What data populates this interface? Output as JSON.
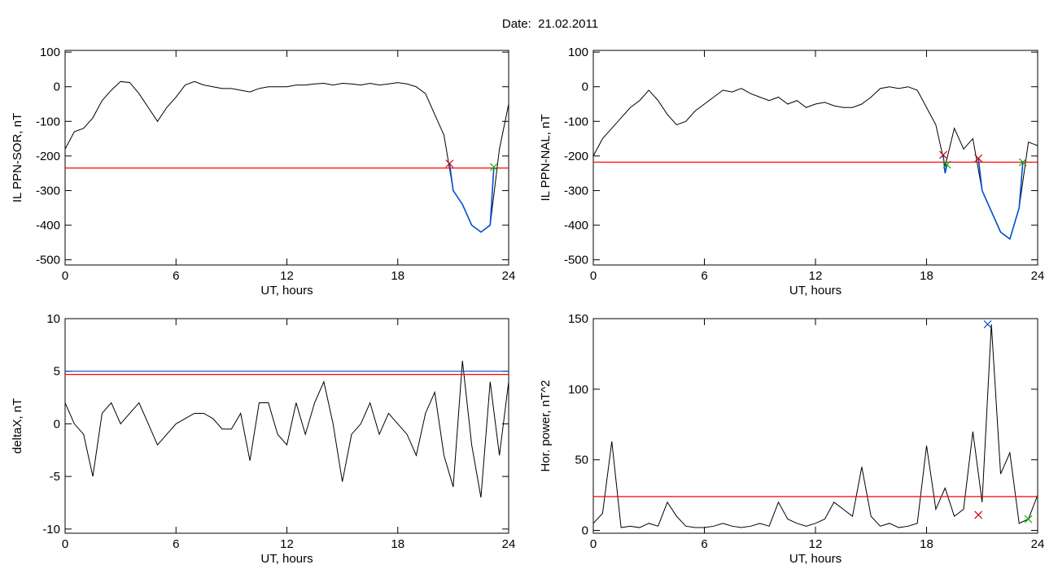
{
  "title": "Date:  21.02.2011",
  "chart_data": [
    {
      "type": "line",
      "ylabel": "IL PPN-SOR, nT",
      "xlabel": "UT, hours",
      "x": [
        0,
        0.5,
        1,
        1.5,
        2,
        2.5,
        3,
        3.5,
        4,
        4.5,
        5,
        5.5,
        6,
        6.5,
        7,
        7.5,
        8,
        8.5,
        9,
        9.5,
        10,
        10.5,
        11,
        11.5,
        12,
        12.5,
        13,
        13.5,
        14,
        14.5,
        15,
        15.5,
        16,
        16.5,
        17,
        17.5,
        18,
        18.5,
        19,
        19.5,
        20,
        20.5,
        21,
        21.5,
        22,
        22.5,
        23,
        23.5,
        24
      ],
      "series": [
        {
          "color": "#000000",
          "values": [
            -180,
            -130,
            -120,
            -90,
            -40,
            -10,
            15,
            12,
            -20,
            -60,
            -100,
            -60,
            -30,
            5,
            15,
            5,
            0,
            -5,
            -5,
            -10,
            -15,
            -5,
            0,
            0,
            0,
            5,
            5,
            8,
            10,
            5,
            10,
            8,
            5,
            10,
            5,
            8,
            12,
            8,
            0,
            -20,
            -80,
            -140,
            -300,
            -340,
            -400,
            -420,
            -400,
            -180,
            -50
          ]
        },
        {
          "color": "#0050d0",
          "x": [
            20.8,
            21,
            21.5,
            22,
            22.5,
            23,
            23.2
          ],
          "values": [
            -222,
            -300,
            -340,
            -400,
            -420,
            -400,
            -232
          ]
        }
      ],
      "hlines": [
        {
          "value": -235,
          "color": "#ff0000"
        }
      ],
      "markers": [
        {
          "x": 20.8,
          "y": -222,
          "color": "#d00000"
        },
        {
          "x": 23.2,
          "y": -232,
          "color": "#00b000"
        }
      ],
      "xlim": [
        0,
        24
      ],
      "xticks": [
        0,
        6,
        12,
        18,
        24
      ],
      "ylim": [
        -515,
        105
      ],
      "yticks": [
        100,
        0,
        -100,
        -200,
        -300,
        -400,
        -500
      ]
    },
    {
      "type": "line",
      "ylabel": "IL PPN-NAL, nT",
      "xlabel": "UT, hours",
      "x": [
        0,
        0.5,
        1,
        1.5,
        2,
        2.5,
        3,
        3.5,
        4,
        4.5,
        5,
        5.5,
        6,
        6.5,
        7,
        7.5,
        8,
        8.5,
        9,
        9.5,
        10,
        10.5,
        11,
        11.5,
        12,
        12.5,
        13,
        13.5,
        14,
        14.5,
        15,
        15.5,
        16,
        16.5,
        17,
        17.5,
        18,
        18.5,
        19,
        19.5,
        20,
        20.5,
        21,
        21.5,
        22,
        22.5,
        23,
        23.5,
        24
      ],
      "series": [
        {
          "color": "#000000",
          "values": [
            -200,
            -150,
            -120,
            -90,
            -60,
            -40,
            -10,
            -40,
            -80,
            -110,
            -100,
            -70,
            -50,
            -30,
            -10,
            -15,
            -5,
            -20,
            -30,
            -40,
            -30,
            -50,
            -40,
            -60,
            -50,
            -45,
            -55,
            -60,
            -60,
            -50,
            -30,
            -5,
            0,
            -5,
            0,
            -10,
            -60,
            -110,
            -230,
            -120,
            -180,
            -150,
            -300,
            -360,
            -420,
            -440,
            -350,
            -160,
            -170
          ]
        },
        {
          "color": "#0050d0",
          "x": [
            18.9,
            19,
            19.1,
            20,
            20.8,
            21,
            21.5,
            22,
            22.5,
            23,
            23.2
          ],
          "values": [
            -197,
            -250,
            -225,
            null,
            -207,
            -300,
            -360,
            -420,
            -440,
            -350,
            -218
          ]
        }
      ],
      "hlines": [
        {
          "value": -218,
          "color": "#ff0000"
        }
      ],
      "markers": [
        {
          "x": 18.9,
          "y": -197,
          "color": "#d00000"
        },
        {
          "x": 20.8,
          "y": -207,
          "color": "#d00000"
        },
        {
          "x": 19.1,
          "y": -225,
          "color": "#00b000"
        },
        {
          "x": 23.2,
          "y": -218,
          "color": "#00b000"
        }
      ],
      "xlim": [
        0,
        24
      ],
      "xticks": [
        0,
        6,
        12,
        18,
        24
      ],
      "ylim": [
        -515,
        105
      ],
      "yticks": [
        100,
        0,
        -100,
        -200,
        -300,
        -400,
        -500
      ]
    },
    {
      "type": "line",
      "ylabel": "deltaX, nT",
      "xlabel": "UT, hours",
      "x": [
        0,
        0.5,
        1,
        1.5,
        2,
        2.5,
        3,
        3.5,
        4,
        4.5,
        5,
        5.5,
        6,
        6.5,
        7,
        7.5,
        8,
        8.5,
        9,
        9.5,
        10,
        10.5,
        11,
        11.5,
        12,
        12.5,
        13,
        13.5,
        14,
        14.5,
        15,
        15.5,
        16,
        16.5,
        17,
        17.5,
        18,
        18.5,
        19,
        19.5,
        20,
        20.5,
        21,
        21.5,
        22,
        22.5,
        23,
        23.5,
        24
      ],
      "series": [
        {
          "color": "#000000",
          "values": [
            2,
            0,
            -1,
            -5,
            1,
            2,
            0,
            1,
            2,
            0,
            -2,
            -1,
            0,
            0.5,
            1,
            1,
            0.5,
            -0.5,
            -0.5,
            1,
            -3.5,
            2,
            2,
            -1,
            -2,
            2,
            -1,
            2,
            4,
            0,
            -5.5,
            -1,
            0,
            2,
            -1,
            1,
            0,
            -1,
            -3,
            1,
            3,
            -3,
            -6,
            6,
            -2,
            -7,
            4,
            -3,
            4
          ]
        }
      ],
      "hlines": [
        {
          "value": 5.0,
          "color": "#0050d0"
        },
        {
          "value": 4.7,
          "color": "#ff0000"
        }
      ],
      "markers": [],
      "xlim": [
        0,
        24
      ],
      "xticks": [
        0,
        6,
        12,
        18,
        24
      ],
      "ylim": [
        -10.4,
        10
      ],
      "yticks": [
        10,
        5,
        0,
        -5,
        -10
      ]
    },
    {
      "type": "line",
      "ylabel": "Hor. power, nT^2",
      "xlabel": "UT, hours",
      "x": [
        0,
        0.5,
        1,
        1.5,
        2,
        2.5,
        3,
        3.5,
        4,
        4.5,
        5,
        5.5,
        6,
        6.5,
        7,
        7.5,
        8,
        8.5,
        9,
        9.5,
        10,
        10.5,
        11,
        11.5,
        12,
        12.5,
        13,
        13.5,
        14,
        14.5,
        15,
        15.5,
        16,
        16.5,
        17,
        17.5,
        18,
        18.5,
        19,
        19.5,
        20,
        20.5,
        21,
        21.5,
        22,
        22.5,
        23,
        23.5,
        24
      ],
      "series": [
        {
          "color": "#000000",
          "values": [
            5,
            12,
            63,
            2,
            3,
            2,
            5,
            3,
            20,
            10,
            3,
            2,
            2,
            3,
            5,
            3,
            2,
            3,
            5,
            3,
            20,
            8,
            5,
            3,
            5,
            8,
            20,
            15,
            10,
            45,
            10,
            3,
            5,
            2,
            3,
            5,
            60,
            15,
            30,
            10,
            15,
            70,
            20,
            146,
            40,
            55,
            5,
            8,
            25
          ]
        }
      ],
      "hlines": [
        {
          "value": 24,
          "color": "#ff0000"
        }
      ],
      "markers": [
        {
          "x": 20.8,
          "y": 11,
          "color": "#d00000"
        },
        {
          "x": 21.3,
          "y": 146,
          "color": "#0050d0"
        },
        {
          "x": 23.5,
          "y": 8,
          "color": "#00b000"
        }
      ],
      "xlim": [
        0,
        24
      ],
      "xticks": [
        0,
        6,
        12,
        18,
        24
      ],
      "ylim": [
        -2,
        150
      ],
      "yticks": [
        150,
        100,
        50,
        0
      ]
    }
  ]
}
